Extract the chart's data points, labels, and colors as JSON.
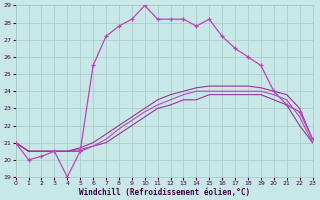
{
  "xlabel": "Windchill (Refroidissement éolien,°C)",
  "xlim": [
    0,
    23
  ],
  "ylim": [
    19,
    29
  ],
  "xticks": [
    0,
    1,
    2,
    3,
    4,
    5,
    6,
    7,
    8,
    9,
    10,
    11,
    12,
    13,
    14,
    15,
    16,
    17,
    18,
    19,
    20,
    21,
    22,
    23
  ],
  "yticks": [
    19,
    20,
    21,
    22,
    23,
    24,
    25,
    26,
    27,
    28,
    29
  ],
  "bg_color": "#c8e8e8",
  "grid_color": "#a8c8c8",
  "line_color1": "#bb44bb",
  "line_color2": "#993399",
  "line1_y": [
    21.0,
    20.0,
    20.2,
    20.5,
    19.0,
    20.5,
    25.5,
    27.2,
    27.8,
    28.2,
    29.0,
    28.2,
    28.2,
    28.2,
    27.8,
    28.2,
    27.2,
    26.5,
    26.0,
    25.5,
    24.0,
    23.2,
    22.8,
    21.2
  ],
  "line2_y": [
    21.0,
    20.5,
    20.5,
    20.5,
    20.5,
    20.5,
    20.8,
    21.0,
    21.5,
    22.0,
    22.5,
    23.0,
    23.2,
    23.5,
    23.5,
    23.8,
    23.8,
    23.8,
    23.8,
    23.8,
    23.5,
    23.2,
    22.0,
    21.0
  ],
  "line3_y": [
    21.0,
    20.5,
    20.5,
    20.5,
    20.5,
    20.6,
    20.8,
    21.2,
    21.8,
    22.3,
    22.8,
    23.2,
    23.5,
    23.8,
    24.0,
    24.0,
    24.0,
    24.0,
    24.0,
    24.0,
    23.8,
    23.5,
    22.5,
    21.0
  ],
  "line4_y": [
    21.0,
    20.5,
    20.5,
    20.5,
    20.5,
    20.7,
    21.0,
    21.5,
    22.0,
    22.5,
    23.0,
    23.5,
    23.8,
    24.0,
    24.2,
    24.3,
    24.3,
    24.3,
    24.3,
    24.2,
    24.0,
    23.8,
    23.0,
    21.2
  ]
}
